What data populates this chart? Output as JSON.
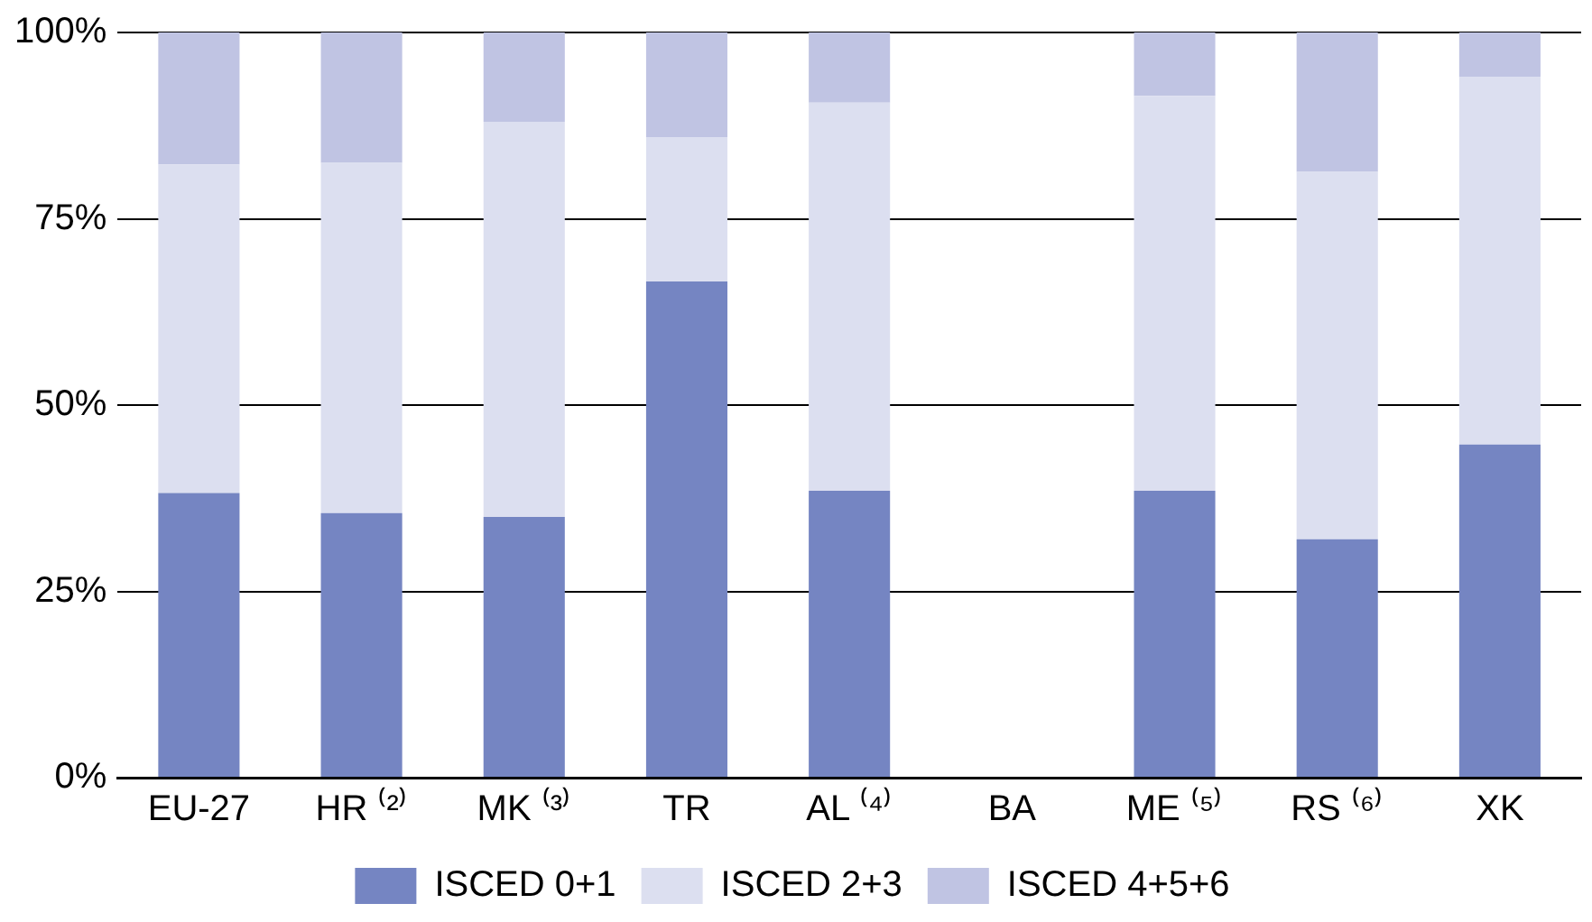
{
  "chart_data": {
    "type": "bar",
    "stacked": true,
    "categories": [
      "EU-27",
      "HR ⁽²⁾",
      "MK ⁽³⁾",
      "TR",
      "AL ⁽⁴⁾",
      "BA",
      "ME ⁽⁵⁾",
      "RS ⁽⁶⁾",
      "XK"
    ],
    "series": [
      {
        "name": "ISCED 0+1",
        "color": "#7585c2",
        "values": [
          38.2,
          35.5,
          35.0,
          66.6,
          38.5,
          null,
          38.5,
          32.0,
          44.7
        ]
      },
      {
        "name": "ISCED 2+3",
        "color": "#dcdff0",
        "values": [
          44.1,
          47.0,
          53.0,
          19.3,
          52.1,
          null,
          53.0,
          49.3,
          49.3
        ]
      },
      {
        "name": "ISCED 4+5+6",
        "color": "#c0c4e3",
        "values": [
          17.7,
          17.5,
          12.0,
          14.1,
          9.4,
          null,
          8.5,
          18.7,
          6.0
        ]
      }
    ],
    "ylim": [
      0,
      100
    ],
    "yticks": [
      {
        "value": 0,
        "label": "0%"
      },
      {
        "value": 25,
        "label": "25%"
      },
      {
        "value": 50,
        "label": "50%"
      },
      {
        "value": 75,
        "label": "75%"
      },
      {
        "value": 100,
        "label": "100%"
      }
    ],
    "grid": "y",
    "legend": "bottom"
  }
}
